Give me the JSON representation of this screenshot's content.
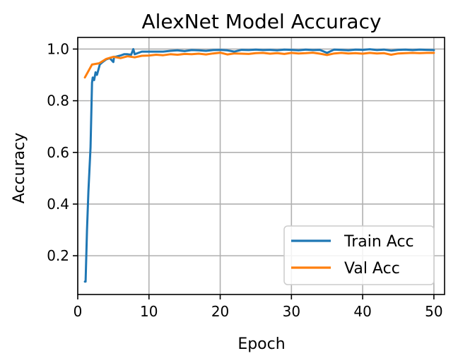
{
  "chart_data": {
    "type": "line",
    "title": "AlexNet Model Accuracy",
    "xlabel": "Epoch",
    "ylabel": "Accuracy",
    "xlim": [
      0,
      51.5
    ],
    "ylim": [
      0.05,
      1.045
    ],
    "xticks": [
      0,
      10,
      20,
      30,
      40,
      50
    ],
    "yticks": [
      0.2,
      0.4,
      0.6,
      0.8,
      1.0
    ],
    "ytick_labels": [
      "0.2",
      "0.4",
      "0.6",
      "0.8",
      "1.0"
    ],
    "grid": true,
    "legend_position": "lower-right",
    "series": [
      {
        "name": "Train Acc",
        "color": "#1f77b4",
        "x": [
          1.0,
          1.1,
          1.3,
          1.5,
          1.8,
          2.0,
          2.1,
          2.3,
          2.5,
          2.7,
          3.0,
          3.1,
          3.5,
          4.0,
          4.5,
          5.0,
          5.1,
          5.3,
          6.0,
          6.5,
          7.0,
          7.5,
          7.8,
          8.0,
          8.5,
          9.0,
          10,
          11,
          12,
          13,
          14,
          15,
          16,
          17,
          18,
          19,
          20,
          21,
          22,
          23,
          24,
          25,
          26,
          27,
          28,
          29,
          30,
          31,
          32,
          33,
          34,
          35,
          36,
          37,
          38,
          39,
          40,
          41,
          42,
          43,
          44,
          45,
          46,
          47,
          48,
          49,
          50
        ],
        "values": [
          0.1,
          0.1,
          0.3,
          0.45,
          0.62,
          0.87,
          0.89,
          0.88,
          0.91,
          0.9,
          0.93,
          0.94,
          0.95,
          0.96,
          0.965,
          0.95,
          0.97,
          0.97,
          0.975,
          0.98,
          0.98,
          0.978,
          1.0,
          0.98,
          0.985,
          0.99,
          0.99,
          0.99,
          0.99,
          0.993,
          0.995,
          0.992,
          0.996,
          0.995,
          0.993,
          0.996,
          0.997,
          0.995,
          0.99,
          0.997,
          0.996,
          0.998,
          0.996,
          0.997,
          0.995,
          0.998,
          0.997,
          0.995,
          0.998,
          0.996,
          0.997,
          0.985,
          0.998,
          0.997,
          0.995,
          0.998,
          0.997,
          0.999,
          0.996,
          0.998,
          0.994,
          0.997,
          0.998,
          0.996,
          0.998,
          0.997,
          0.996
        ]
      },
      {
        "name": "Val Acc",
        "color": "#ff7f0e",
        "x": [
          1,
          2,
          3,
          4,
          5,
          6,
          7,
          8,
          9,
          10,
          11,
          12,
          13,
          14,
          15,
          16,
          17,
          18,
          19,
          20,
          21,
          22,
          23,
          24,
          25,
          26,
          27,
          28,
          29,
          30,
          31,
          32,
          33,
          34,
          35,
          36,
          37,
          38,
          39,
          40,
          41,
          42,
          43,
          44,
          45,
          46,
          47,
          48,
          49,
          50
        ],
        "values": [
          0.89,
          0.94,
          0.945,
          0.962,
          0.97,
          0.965,
          0.972,
          0.968,
          0.974,
          0.975,
          0.978,
          0.976,
          0.98,
          0.978,
          0.981,
          0.98,
          0.982,
          0.979,
          0.983,
          0.986,
          0.979,
          0.983,
          0.982,
          0.981,
          0.984,
          0.985,
          0.982,
          0.984,
          0.981,
          0.985,
          0.983,
          0.984,
          0.986,
          0.982,
          0.977,
          0.983,
          0.985,
          0.983,
          0.984,
          0.982,
          0.985,
          0.983,
          0.984,
          0.978,
          0.983,
          0.984,
          0.985,
          0.984,
          0.985,
          0.985
        ]
      }
    ]
  }
}
